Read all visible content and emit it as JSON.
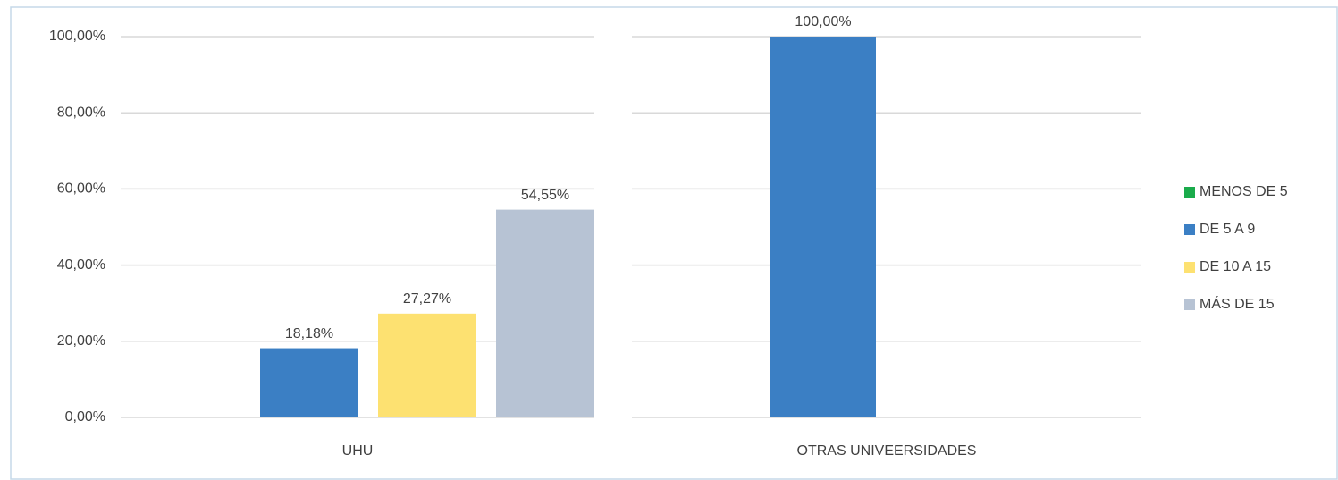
{
  "chart_data": {
    "type": "bar",
    "categories": [
      "UHU",
      "OTRAS UNIVEERSIDADES"
    ],
    "series": [
      {
        "name": "MENOS DE 5",
        "color": "#1aab4b",
        "values": [
          null,
          null
        ],
        "value_labels": [
          null,
          null
        ]
      },
      {
        "name": "DE 5 A 9",
        "color": "#3b7fc4",
        "values": [
          18.18,
          100
        ],
        "value_labels": [
          "18,18%",
          "100,00%"
        ]
      },
      {
        "name": "DE 10 A 15",
        "color": "#fde171",
        "values": [
          27.27,
          null
        ],
        "value_labels": [
          "27,27%",
          null
        ]
      },
      {
        "name": "MÁS DE 15",
        "color": "#b7c3d4",
        "values": [
          54.55,
          null
        ],
        "value_labels": [
          "54,55%",
          null
        ]
      }
    ],
    "ylim": [
      0,
      100
    ],
    "yticks": [
      {
        "value": 0,
        "label": "0,00%"
      },
      {
        "value": 20,
        "label": "20,00%"
      },
      {
        "value": 40,
        "label": "40,00%"
      },
      {
        "value": 60,
        "label": "60,00%"
      },
      {
        "value": 80,
        "label": "80,00%"
      },
      {
        "value": 100,
        "label": "100,00%"
      }
    ],
    "grid": true,
    "legend": "right"
  }
}
